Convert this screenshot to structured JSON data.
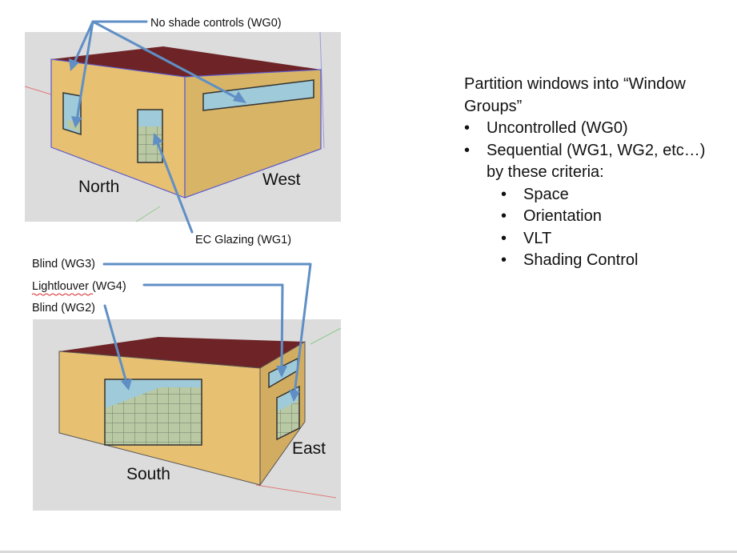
{
  "callouts": {
    "no_shade": "No shade controls (WG0)",
    "ec_glazing": "EC Glazing (WG1)",
    "blind_wg3": "Blind (WG3)",
    "lightlouver_wg4": "Lightlouver (WG4)",
    "blind_wg2": "Blind (WG2)"
  },
  "facades": {
    "north": "North",
    "west": "West",
    "south": "South",
    "east": "East"
  },
  "panel": {
    "title": "Partition windows into “Window Groups”",
    "items": [
      "Uncontrolled (WG0)",
      "Sequential (WG1, WG2, etc…)",
      "by these criteria:"
    ],
    "criteria": [
      "Space",
      "Orientation",
      "VLT",
      "Shading Control"
    ]
  },
  "colors": {
    "wall": "#e7c071",
    "wall_side": "#d2ad61",
    "roof": "#6e2427",
    "glass": "#9fcad9",
    "arrow": "#5f8fc5",
    "background_panel": "#dcdcdc"
  }
}
